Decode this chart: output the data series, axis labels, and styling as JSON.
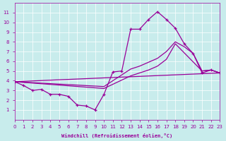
{
  "bg_color": "#c8ecec",
  "line_color": "#990099",
  "grid_color": "#ffffff",
  "xlabel": "Windchill (Refroidissement éolien,°C)",
  "xlim": [
    0,
    23
  ],
  "ylim": [
    0,
    12
  ],
  "xticks": [
    0,
    1,
    2,
    3,
    4,
    5,
    6,
    7,
    8,
    9,
    10,
    11,
    12,
    13,
    14,
    15,
    16,
    17,
    18,
    19,
    20,
    21,
    22,
    23
  ],
  "yticks": [
    1,
    2,
    3,
    4,
    5,
    6,
    7,
    8,
    9,
    10,
    11
  ],
  "main_line": {
    "x": [
      0,
      1,
      2,
      3,
      4,
      5,
      6,
      7,
      8,
      9,
      10,
      11,
      12,
      13,
      14,
      15,
      16,
      17,
      18,
      19,
      20,
      21,
      22,
      23
    ],
    "y": [
      3.9,
      3.5,
      3.0,
      3.1,
      2.6,
      2.6,
      2.4,
      1.5,
      1.4,
      1.0,
      2.6,
      4.9,
      5.0,
      9.3,
      9.3,
      10.3,
      11.1,
      10.3,
      9.4,
      7.8,
      6.8,
      4.8,
      5.1,
      4.8
    ]
  },
  "line_straight": {
    "x": [
      0,
      23
    ],
    "y": [
      3.9,
      4.8
    ]
  },
  "line_mid": {
    "x": [
      0,
      10,
      13,
      14,
      15,
      16,
      17,
      18,
      21,
      22,
      23
    ],
    "y": [
      3.9,
      3.2,
      4.5,
      4.8,
      5.1,
      5.5,
      6.2,
      7.8,
      5.0,
      5.1,
      4.8
    ]
  },
  "line_upper": {
    "x": [
      0,
      10,
      13,
      14,
      15,
      16,
      17,
      18,
      19,
      20,
      21,
      22,
      23
    ],
    "y": [
      3.9,
      3.4,
      5.2,
      5.5,
      5.9,
      6.3,
      7.0,
      8.0,
      7.5,
      6.8,
      5.0,
      5.1,
      4.8
    ]
  }
}
